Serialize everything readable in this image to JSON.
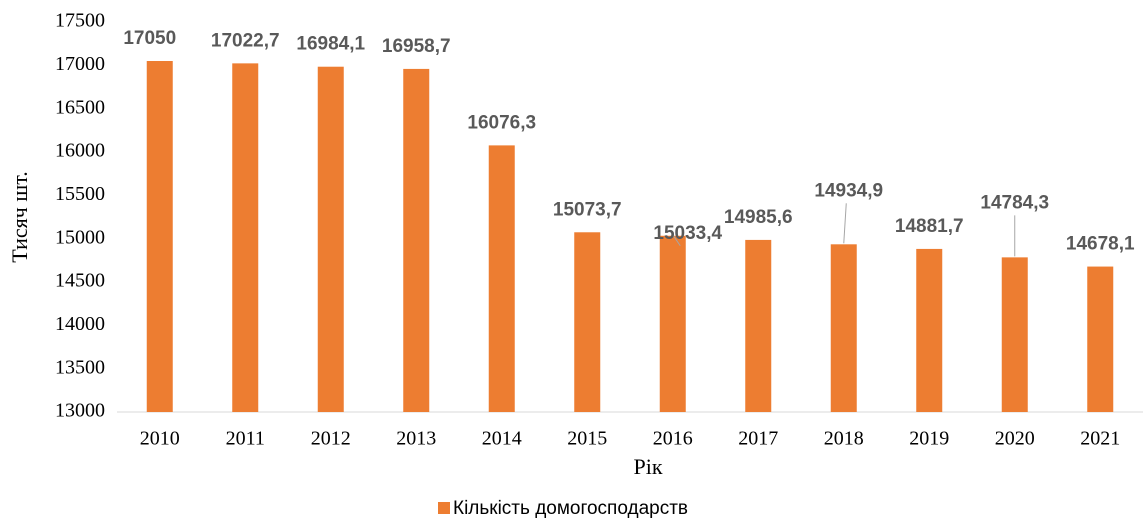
{
  "chart_data": {
    "type": "bar",
    "categories": [
      "2010",
      "2011",
      "2012",
      "2013",
      "2014",
      "2015",
      "2016",
      "2017",
      "2018",
      "2019",
      "2020",
      "2021"
    ],
    "values": [
      17050,
      17022.7,
      16984.1,
      16958.7,
      16076.3,
      15073.7,
      15033.4,
      14985.6,
      14934.9,
      14881.7,
      14784.3,
      14678.1
    ],
    "value_labels": [
      "17050",
      "17022,7",
      "16984,1",
      "16958,7",
      "16076,3",
      "15073,7",
      "15033,4",
      "14985,6",
      "14934,9",
      "14881,7",
      "14784,3",
      "14678,1"
    ],
    "color": "#ed7d31",
    "series_name": "Кількість домогосподарств",
    "x_label": "Рік",
    "y_label": "Тисяч  шт.",
    "ylim": [
      13000,
      17500
    ],
    "yticks": [
      13000,
      13500,
      14000,
      14500,
      15000,
      15500,
      16000,
      16500,
      17000,
      17500
    ],
    "grid": false,
    "legend": "bottom"
  }
}
